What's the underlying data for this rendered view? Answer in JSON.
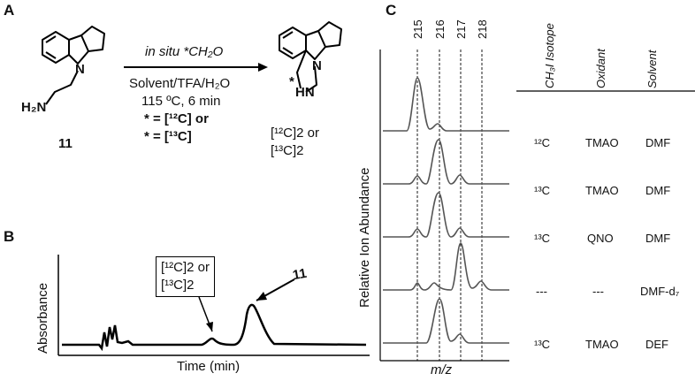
{
  "panel_a": {
    "letter": "A",
    "reactant_label": "11",
    "reactant_amine": "H₂N",
    "reactant_n": "N",
    "arrow_top": "in situ *CH₂O",
    "conditions": [
      "Solvent/TFA/H₂O",
      "115 ºC, 6 min"
    ],
    "isotope_lines": [
      "* = [¹²C] or",
      "* = [¹³C]"
    ],
    "product_nh": "HN",
    "product_n": "N",
    "product_star": "*",
    "product_labels": [
      "[¹²C]2 or",
      "[¹³C]2"
    ]
  },
  "panel_b": {
    "letter": "B",
    "ylabel": "Absorbance",
    "xlabel": "Time (min)",
    "box_lines": [
      "[¹²C]2 or",
      "[¹³C]2"
    ],
    "peak_label": "11"
  },
  "panel_c": {
    "letter": "C",
    "mz_ticks": [
      "215",
      "216",
      "217",
      "218"
    ],
    "ylabel": "Relative Ion Abundance",
    "xlabel": "m/z",
    "headers": [
      "CH₃I Isotope",
      "Oxidant",
      "Solvent"
    ],
    "rows": [
      {
        "isotope": "¹²C",
        "oxidant": "TMAO",
        "solvent": "DMF"
      },
      {
        "isotope": "¹³C",
        "oxidant": "TMAO",
        "solvent": "DMF"
      },
      {
        "isotope": "¹³C",
        "oxidant": "QNO",
        "solvent": "DMF"
      },
      {
        "isotope": "---",
        "oxidant": "---",
        "solvent": "DMF-d₇"
      },
      {
        "isotope": "¹³C",
        "oxidant": "TMAO",
        "solvent": "DEF"
      }
    ]
  }
}
